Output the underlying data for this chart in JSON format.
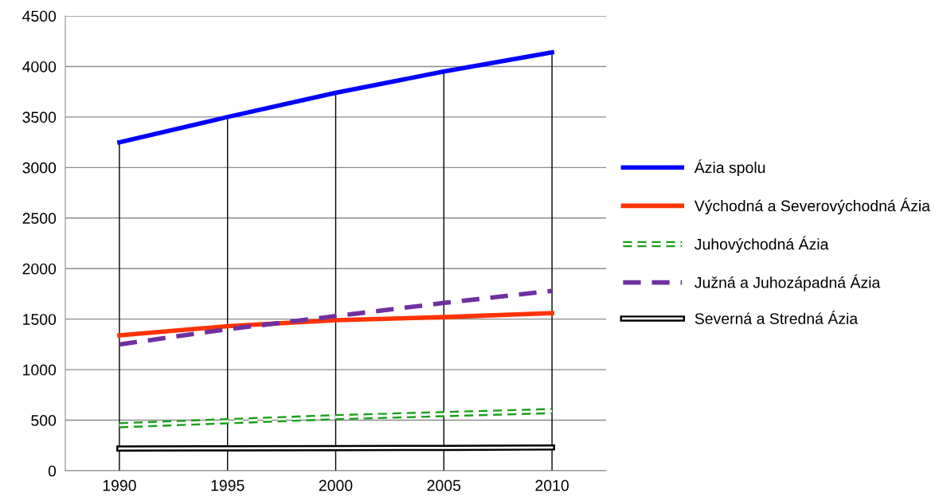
{
  "chart_data": {
    "type": "line",
    "categories": [
      "1990",
      "1995",
      "2000",
      "2005",
      "2010"
    ],
    "series": [
      {
        "name": "Ázia spolu",
        "color": "#0000ff",
        "line_style": "solid",
        "values": [
          3250,
          3500,
          3740,
          3950,
          4140
        ]
      },
      {
        "name": "Východná a Severovýchodná Ázia",
        "color": "#ff3300",
        "line_style": "solid",
        "values": [
          1340,
          1430,
          1490,
          1520,
          1560
        ]
      },
      {
        "name": "Juhovýchodná Ázia",
        "color": "#19a019",
        "line_style": "dashed",
        "values": [
          450,
          490,
          530,
          560,
          590
        ]
      },
      {
        "name": "Južná a Juhozápadná Ázia",
        "color": "#7030a0",
        "line_style": "dashed",
        "values": [
          1250,
          1400,
          1530,
          1660,
          1780
        ]
      },
      {
        "name": "Severná a Stredná Ázia",
        "color": "#000000",
        "line_style": "solid",
        "values": [
          220,
          222,
          224,
          226,
          230
        ]
      }
    ],
    "ylim": [
      0,
      4500
    ],
    "yticks": [
      0,
      500,
      1000,
      1500,
      2000,
      2500,
      3000,
      3500,
      4000,
      4500
    ],
    "grid": true,
    "legend": "right",
    "marker": "none"
  }
}
